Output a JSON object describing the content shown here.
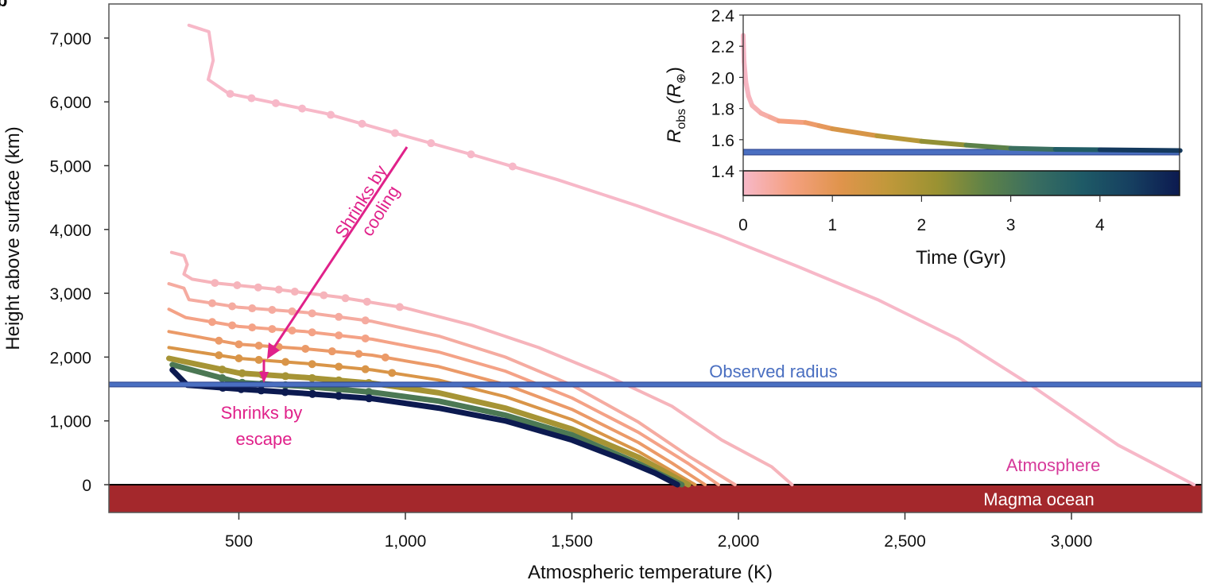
{
  "panel_label": "b",
  "colors": {
    "magma": "#a4282c",
    "observed": "#4a6fc1",
    "annotation": "#e0218a",
    "atmosphere_label": "#d63a9a",
    "colormap": [
      "#f7b8c8",
      "#f4a080",
      "#e0944c",
      "#c0983a",
      "#9a9232",
      "#5e8248",
      "#3a6e60",
      "#1e5a66",
      "#163f60",
      "#0c1a50"
    ]
  },
  "chart_data": [
    {
      "type": "line",
      "xlabel": "Atmospheric temperature (K)",
      "ylabel": "Height above surface (km)",
      "xlim": [
        100,
        3410
      ],
      "ylim": [
        -440,
        7550
      ],
      "xticks": [
        500,
        1000,
        1500,
        2000,
        2500,
        3000
      ],
      "xtick_labels": [
        "500",
        "1,000",
        "1,500",
        "2,000",
        "2,500",
        "3,000"
      ],
      "yticks": [
        0,
        1000,
        2000,
        3000,
        4000,
        5000,
        6000,
        7000
      ],
      "ytick_labels": [
        "0",
        "1,000",
        "2,000",
        "3,000",
        "4,000",
        "5,000",
        "6,000",
        "7,000"
      ],
      "grid": false,
      "observed_radius_km": 1570,
      "annotations": {
        "observed": "Observed radius",
        "cooling": [
          "Shrinks by",
          "cooling"
        ],
        "escape": [
          "Shrinks by",
          "escape"
        ],
        "atmosphere": "Atmosphere",
        "magma": "Magma ocean"
      },
      "series": [
        {
          "time_gyr": 0.0,
          "markers_T": [
            474,
            538,
            611,
            690,
            776,
            870,
            969,
            1077,
            1197,
            1322
          ],
          "points": [
            [
              350,
              7200
            ],
            [
              410,
              7100
            ],
            [
              423,
              6650
            ],
            [
              408,
              6350
            ],
            [
              470,
              6130
            ],
            [
              545,
              6050
            ],
            [
              760,
              5820
            ],
            [
              976,
              5500
            ],
            [
              1216,
              5150
            ],
            [
              1457,
              4780
            ],
            [
              1697,
              4370
            ],
            [
              1937,
              3920
            ],
            [
              2178,
              3420
            ],
            [
              2418,
              2900
            ],
            [
              2660,
              2280
            ],
            [
              2875,
              1570
            ],
            [
              3140,
              620
            ],
            [
              3368,
              0
            ]
          ]
        },
        {
          "time_gyr": 0.1,
          "markers_T": [
            428,
            495,
            558,
            620,
            668,
            755,
            820,
            885,
            983
          ],
          "points": [
            [
              298,
              3640
            ],
            [
              335,
              3590
            ],
            [
              345,
              3450
            ],
            [
              335,
              3300
            ],
            [
              360,
              3220
            ],
            [
              430,
              3160
            ],
            [
              600,
              3070
            ],
            [
              800,
              2940
            ],
            [
              1000,
              2770
            ],
            [
              1200,
              2500
            ],
            [
              1400,
              2150
            ],
            [
              1600,
              1720
            ],
            [
              1800,
              1230
            ],
            [
              1950,
              700
            ],
            [
              2100,
              280
            ],
            [
              2161,
              0
            ]
          ]
        },
        {
          "time_gyr": 0.3,
          "markers_T": [
            420,
            480,
            540,
            600,
            660,
            720,
            800,
            880
          ],
          "points": [
            [
              290,
              3150
            ],
            [
              335,
              3080
            ],
            [
              350,
              2900
            ],
            [
              500,
              2780
            ],
            [
              700,
              2700
            ],
            [
              900,
              2560
            ],
            [
              1100,
              2330
            ],
            [
              1300,
              2000
            ],
            [
              1500,
              1560
            ],
            [
              1700,
              980
            ],
            [
              1850,
              450
            ],
            [
              1990,
              0
            ]
          ]
        },
        {
          "time_gyr": 0.5,
          "markers_T": [
            420,
            480,
            540,
            600,
            660,
            720,
            800,
            880
          ],
          "points": [
            [
              290,
              2750
            ],
            [
              340,
              2620
            ],
            [
              500,
              2480
            ],
            [
              700,
              2400
            ],
            [
              900,
              2280
            ],
            [
              1100,
              2080
            ],
            [
              1300,
              1780
            ],
            [
              1500,
              1360
            ],
            [
              1700,
              820
            ],
            [
              1850,
              330
            ],
            [
              1940,
              0
            ]
          ]
        },
        {
          "time_gyr": 0.8,
          "markers_T": [
            440,
            500,
            560,
            620,
            700,
            780,
            860,
            940
          ],
          "points": [
            [
              290,
              2400
            ],
            [
              500,
              2200
            ],
            [
              700,
              2130
            ],
            [
              900,
              2030
            ],
            [
              1100,
              1850
            ],
            [
              1300,
              1570
            ],
            [
              1500,
              1180
            ],
            [
              1700,
              660
            ],
            [
              1800,
              340
            ],
            [
              1900,
              0
            ]
          ]
        },
        {
          "time_gyr": 1.2,
          "markers_T": [
            440,
            500,
            560,
            640,
            720,
            800,
            880,
            960
          ],
          "points": [
            [
              290,
              2150
            ],
            [
              500,
              1980
            ],
            [
              700,
              1900
            ],
            [
              900,
              1800
            ],
            [
              1100,
              1640
            ],
            [
              1300,
              1380
            ],
            [
              1500,
              1020
            ],
            [
              1700,
              520
            ],
            [
              1870,
              0
            ]
          ]
        },
        {
          "time_gyr": 2.0,
          "markers_T": [
            450,
            510,
            570,
            640,
            720,
            800,
            890
          ],
          "points": [
            [
              290,
              1980
            ],
            [
              500,
              1750
            ],
            [
              700,
              1680
            ],
            [
              900,
              1590
            ],
            [
              1100,
              1440
            ],
            [
              1300,
              1200
            ],
            [
              1500,
              870
            ],
            [
              1700,
              430
            ],
            [
              1850,
              0
            ]
          ]
        },
        {
          "time_gyr": 3.0,
          "markers_T": [
            450,
            510,
            570,
            640,
            720,
            800,
            890
          ],
          "points": [
            [
              300,
              1880
            ],
            [
              500,
              1600
            ],
            [
              700,
              1540
            ],
            [
              900,
              1450
            ],
            [
              1100,
              1310
            ],
            [
              1300,
              1090
            ],
            [
              1500,
              780
            ],
            [
              1700,
              330
            ],
            [
              1830,
              0
            ]
          ]
        },
        {
          "time_gyr": 4.9,
          "markers_T": [
            452,
            507,
            567,
            639,
            721,
            800,
            891
          ],
          "points": [
            [
              300,
              1800
            ],
            [
              330,
              1640
            ],
            [
              345,
              1560
            ],
            [
              500,
              1500
            ],
            [
              700,
              1430
            ],
            [
              900,
              1350
            ],
            [
              1100,
              1200
            ],
            [
              1300,
              1000
            ],
            [
              1500,
              700
            ],
            [
              1650,
              400
            ],
            [
              1750,
              180
            ],
            [
              1817,
              0
            ]
          ]
        }
      ]
    },
    {
      "type": "line",
      "inset": true,
      "xlabel": "Time (Gyr)",
      "ylabel_main": "R",
      "ylabel_sub": "obs",
      "ylabel_unit": "(R",
      "ylabel_unit_sub": "⊕",
      "ylabel_close": ")",
      "xlim": [
        0,
        4.9
      ],
      "ylim": [
        1.24,
        2.4
      ],
      "xticks": [
        0,
        1,
        2,
        3,
        4
      ],
      "xtick_labels": [
        "0",
        "1",
        "2",
        "3",
        "4"
      ],
      "yticks": [
        1.4,
        1.6,
        1.8,
        2.0,
        2.2,
        2.4
      ],
      "ytick_labels": [
        "1.4",
        "1.6",
        "1.8",
        "2.0",
        "2.2",
        "2.4"
      ],
      "observed_radius": 1.52,
      "colorbar": "time",
      "points": [
        [
          0,
          2.27
        ],
        [
          0.01,
          2.1
        ],
        [
          0.03,
          1.97
        ],
        [
          0.06,
          1.88
        ],
        [
          0.1,
          1.82
        ],
        [
          0.2,
          1.77
        ],
        [
          0.3,
          1.745
        ],
        [
          0.4,
          1.72
        ],
        [
          0.7,
          1.71
        ],
        [
          0.85,
          1.69
        ],
        [
          1.0,
          1.67
        ],
        [
          1.5,
          1.625
        ],
        [
          2.0,
          1.59
        ],
        [
          2.5,
          1.565
        ],
        [
          3.0,
          1.545
        ],
        [
          3.5,
          1.538
        ],
        [
          4.0,
          1.535
        ],
        [
          4.9,
          1.53
        ]
      ]
    }
  ]
}
